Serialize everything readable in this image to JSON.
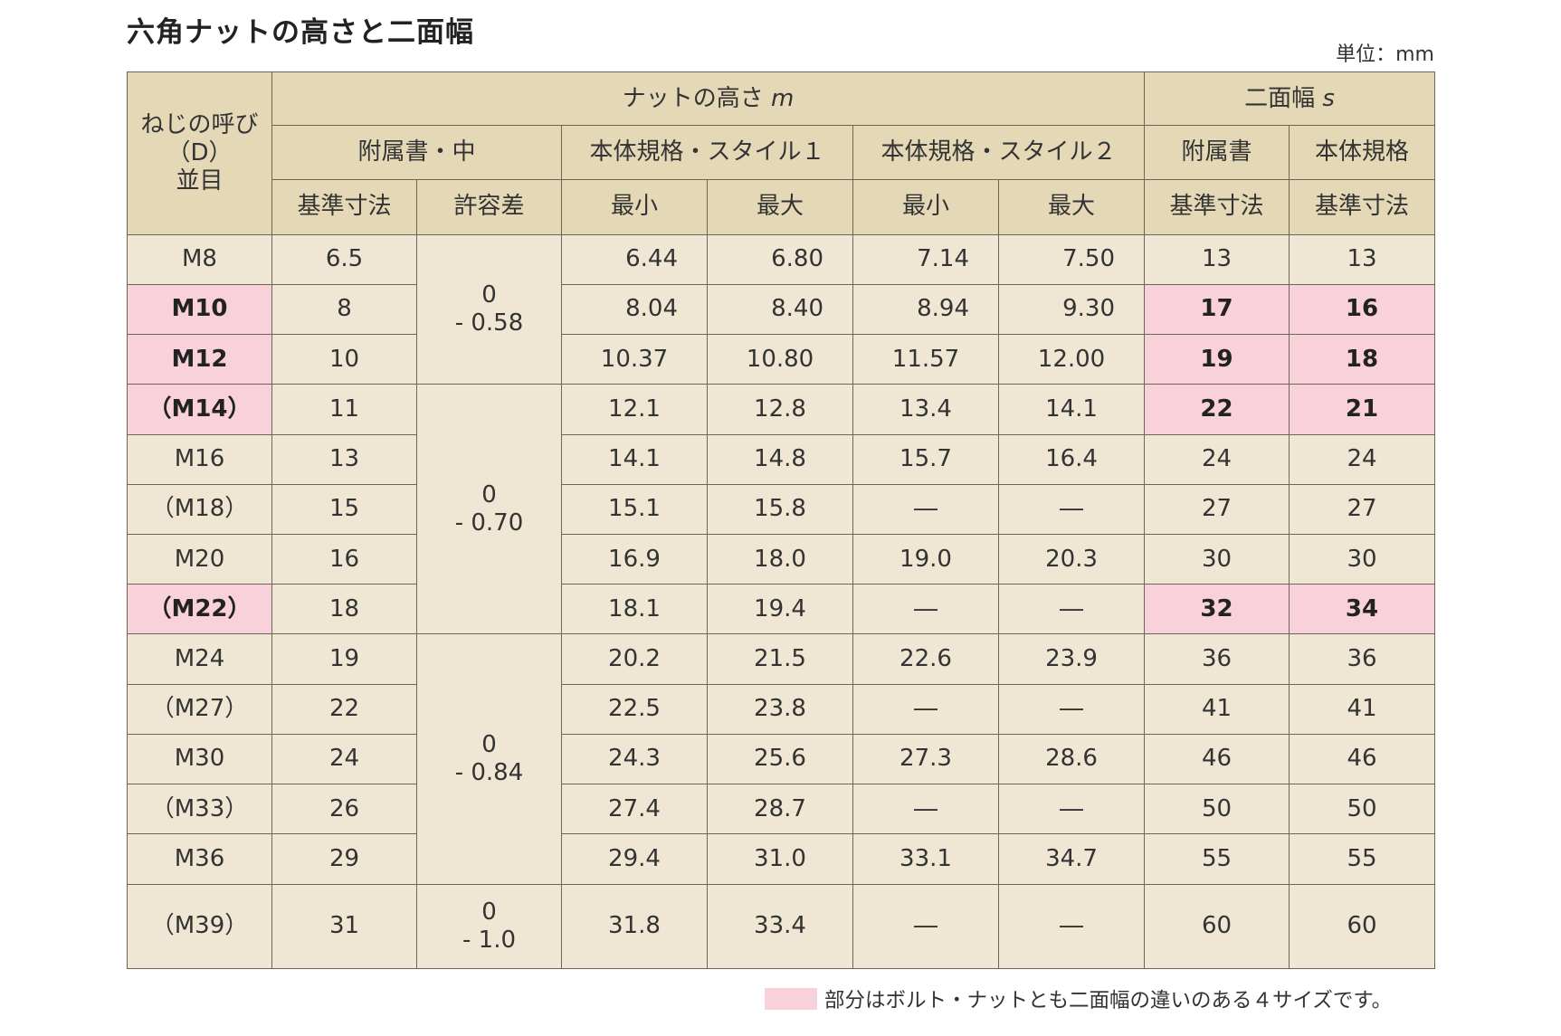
{
  "title": "六角ナットの高さと二面幅",
  "unit": "単位：mm",
  "header": {
    "nominal": [
      "ねじの呼び",
      "（D）",
      "並目"
    ],
    "nut_height": "ナットの高さ",
    "nut_height_symbol": "m",
    "across_flats": "二面幅",
    "across_flats_symbol": "s",
    "annex_mid": "附属書・中",
    "main_style1": "本体規格・スタイル１",
    "main_style2": "本体規格・スタイル２",
    "annex": "附属書",
    "main": "本体規格",
    "basic_size": "基準寸法",
    "tolerance": "許容差",
    "min": "最小",
    "max": "最大"
  },
  "tolerances": [
    [
      "0",
      "- 0.58"
    ],
    [
      "0",
      "- 0.70"
    ],
    [
      "0",
      "- 0.84"
    ],
    [
      "0",
      "- 1.0"
    ]
  ],
  "rows": [
    {
      "size": "M8",
      "basic": "6.5",
      "s1_min": "6.44",
      "s1_max": "6.80",
      "s2_min": "7.14",
      "s2_max": "7.50",
      "s_annex": "13",
      "s_main": "13"
    },
    {
      "size": "M10",
      "basic": "8",
      "s1_min": "8.04",
      "s1_max": "8.40",
      "s2_min": "8.94",
      "s2_max": "9.30",
      "s_annex": "17",
      "s_main": "16"
    },
    {
      "size": "M12",
      "basic": "10",
      "s1_min": "10.37",
      "s1_max": "10.80",
      "s2_min": "11.57",
      "s2_max": "12.00",
      "s_annex": "19",
      "s_main": "18"
    },
    {
      "size": "（M14）",
      "basic": "11",
      "s1_min": "12.1",
      "s1_max": "12.8",
      "s2_min": "13.4",
      "s2_max": "14.1",
      "s_annex": "22",
      "s_main": "21"
    },
    {
      "size": "M16",
      "basic": "13",
      "s1_min": "14.1",
      "s1_max": "14.8",
      "s2_min": "15.7",
      "s2_max": "16.4",
      "s_annex": "24",
      "s_main": "24"
    },
    {
      "size": "（M18）",
      "basic": "15",
      "s1_min": "15.1",
      "s1_max": "15.8",
      "s2_min": "―",
      "s2_max": "―",
      "s_annex": "27",
      "s_main": "27"
    },
    {
      "size": "M20",
      "basic": "16",
      "s1_min": "16.9",
      "s1_max": "18.0",
      "s2_min": "19.0",
      "s2_max": "20.3",
      "s_annex": "30",
      "s_main": "30"
    },
    {
      "size": "（M22）",
      "basic": "18",
      "s1_min": "18.1",
      "s1_max": "19.4",
      "s2_min": "―",
      "s2_max": "―",
      "s_annex": "32",
      "s_main": "34"
    },
    {
      "size": "M24",
      "basic": "19",
      "s1_min": "20.2",
      "s1_max": "21.5",
      "s2_min": "22.6",
      "s2_max": "23.9",
      "s_annex": "36",
      "s_main": "36"
    },
    {
      "size": "（M27）",
      "basic": "22",
      "s1_min": "22.5",
      "s1_max": "23.8",
      "s2_min": "―",
      "s2_max": "―",
      "s_annex": "41",
      "s_main": "41"
    },
    {
      "size": "M30",
      "basic": "24",
      "s1_min": "24.3",
      "s1_max": "25.6",
      "s2_min": "27.3",
      "s2_max": "28.6",
      "s_annex": "46",
      "s_main": "46"
    },
    {
      "size": "（M33）",
      "basic": "26",
      "s1_min": "27.4",
      "s1_max": "28.7",
      "s2_min": "―",
      "s2_max": "―",
      "s_annex": "50",
      "s_main": "50"
    },
    {
      "size": "M36",
      "basic": "29",
      "s1_min": "29.4",
      "s1_max": "31.0",
      "s2_min": "33.1",
      "s2_max": "34.7",
      "s_annex": "55",
      "s_main": "55"
    },
    {
      "size": "（M39）",
      "basic": "31",
      "s1_min": "31.8",
      "s1_max": "33.4",
      "s2_min": "―",
      "s2_max": "―",
      "s_annex": "60",
      "s_main": "60"
    }
  ],
  "legend": "部分はボルト・ナットとも二面幅の違いのある４サイズです。",
  "colors": {
    "header_bg": "#e4d8b7",
    "body_bg": "#efe7d3",
    "highlight": "#f8d1da",
    "border": "#6d6556"
  }
}
